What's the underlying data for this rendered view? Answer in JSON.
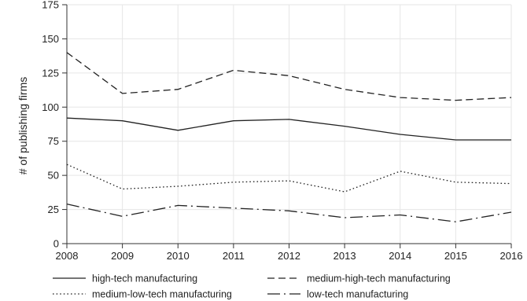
{
  "chart_data": {
    "type": "line",
    "title": "",
    "xlabel": "",
    "ylabel": "# of publishing firms",
    "x": [
      2008,
      2009,
      2010,
      2011,
      2012,
      2013,
      2014,
      2015,
      2016
    ],
    "ylim": [
      0,
      175
    ],
    "yticks": [
      0,
      25,
      50,
      75,
      100,
      125,
      150,
      175
    ],
    "grid": "vertical and horizontal, light gray",
    "legend_position": "bottom",
    "series": [
      {
        "name": "high-tech manufacturing",
        "style": "solid",
        "values": [
          92,
          90,
          83,
          90,
          91,
          86,
          80,
          76,
          76
        ]
      },
      {
        "name": "medium-high-tech manufacturing",
        "style": "dashed",
        "values": [
          140,
          110,
          113,
          127,
          123,
          113,
          107,
          105,
          107
        ]
      },
      {
        "name": "medium-low-tech manufacturing",
        "style": "dotted",
        "values": [
          58,
          40,
          42,
          45,
          46,
          38,
          53,
          45,
          44
        ]
      },
      {
        "name": "low-tech manufacturing",
        "style": "long-dash-dot",
        "values": [
          29,
          20,
          28,
          26,
          24,
          19,
          21,
          16,
          23
        ]
      }
    ],
    "colors": {
      "line": "#222222",
      "grid": "#e6e6e6",
      "axis": "#333333"
    }
  }
}
